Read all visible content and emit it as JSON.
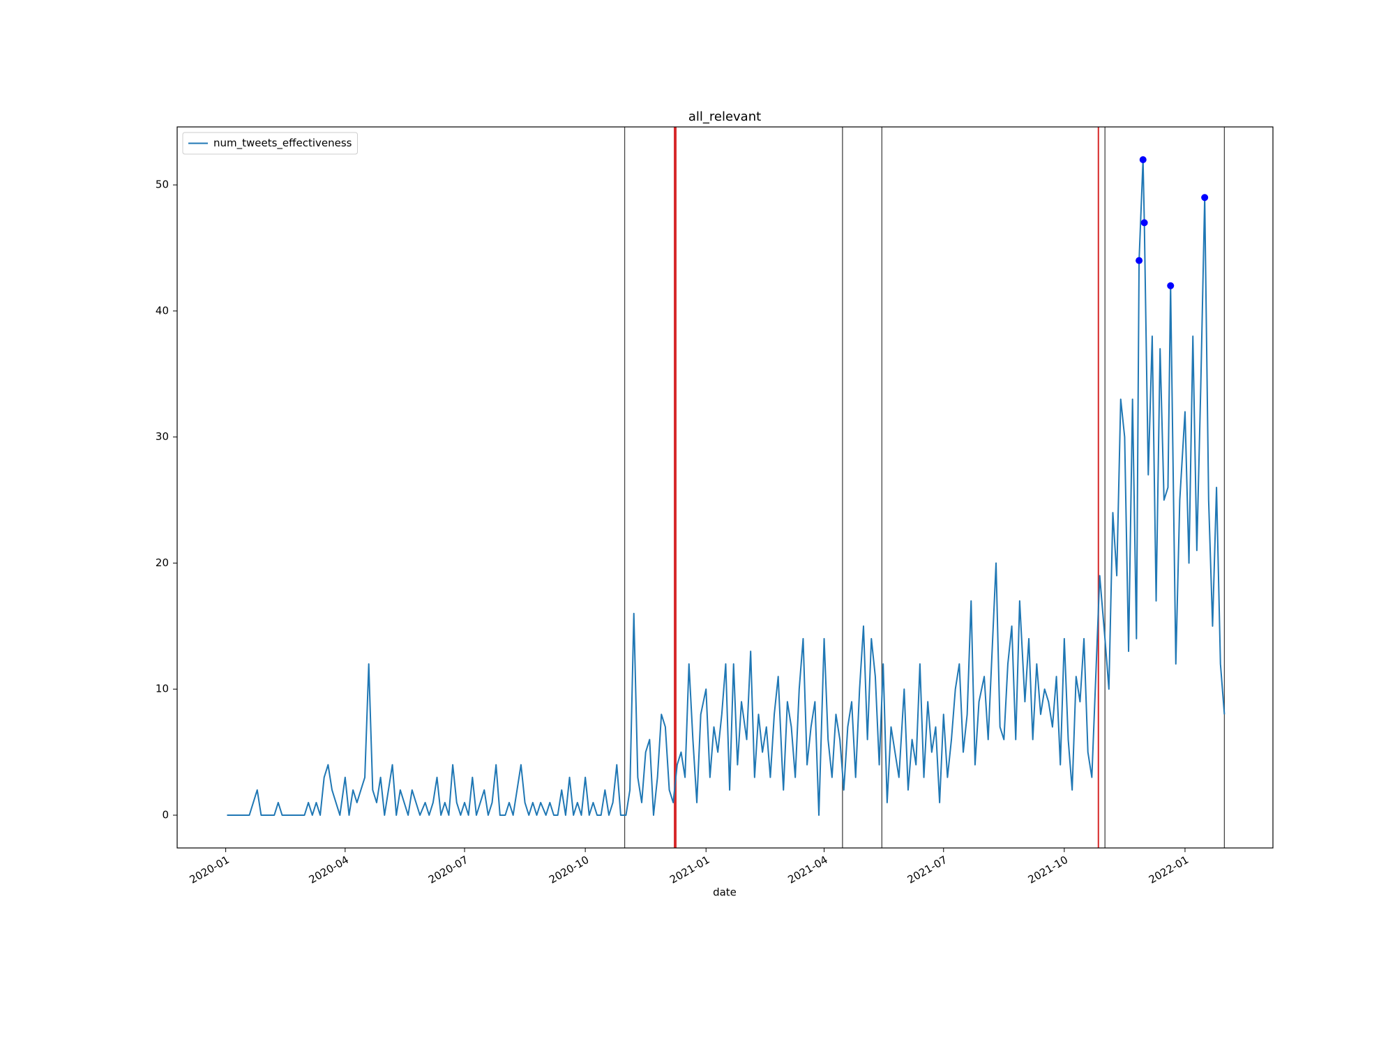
{
  "chart_data": {
    "type": "line",
    "title": "all_relevant",
    "x_label": "date",
    "legend_loc": "upper left",
    "xlim": [
      "2019-11-25",
      "2022-03-09"
    ],
    "ylim": [
      -2.6,
      54.6
    ],
    "yticks": [
      0,
      10,
      20,
      30,
      40,
      50
    ],
    "xticks": [
      {
        "value": "2020-01-01",
        "label": "2020-01"
      },
      {
        "value": "2020-04-01",
        "label": "2020-04"
      },
      {
        "value": "2020-07-01",
        "label": "2020-07"
      },
      {
        "value": "2020-10-01",
        "label": "2020-10"
      },
      {
        "value": "2021-01-01",
        "label": "2021-01"
      },
      {
        "value": "2021-04-01",
        "label": "2021-04"
      },
      {
        "value": "2021-07-01",
        "label": "2021-07"
      },
      {
        "value": "2021-10-01",
        "label": "2021-10"
      },
      {
        "value": "2022-01-01",
        "label": "2022-01"
      }
    ],
    "x": [
      "2020-01-02",
      "2020-01-04",
      "2020-01-07",
      "2020-01-10",
      "2020-01-13",
      "2020-01-16",
      "2020-01-19",
      "2020-01-22",
      "2020-01-25",
      "2020-01-28",
      "2020-02-01",
      "2020-02-04",
      "2020-02-07",
      "2020-02-10",
      "2020-02-13",
      "2020-02-16",
      "2020-02-19",
      "2020-02-22",
      "2020-02-25",
      "2020-02-28",
      "2020-03-01",
      "2020-03-04",
      "2020-03-07",
      "2020-03-10",
      "2020-03-13",
      "2020-03-16",
      "2020-03-19",
      "2020-03-22",
      "2020-03-25",
      "2020-03-28",
      "2020-04-01",
      "2020-04-04",
      "2020-04-07",
      "2020-04-10",
      "2020-04-13",
      "2020-04-16",
      "2020-04-19",
      "2020-04-22",
      "2020-04-25",
      "2020-04-28",
      "2020-05-01",
      "2020-05-04",
      "2020-05-07",
      "2020-05-10",
      "2020-05-13",
      "2020-05-16",
      "2020-05-19",
      "2020-05-22",
      "2020-05-25",
      "2020-05-28",
      "2020-06-01",
      "2020-06-04",
      "2020-06-07",
      "2020-06-10",
      "2020-06-13",
      "2020-06-16",
      "2020-06-19",
      "2020-06-22",
      "2020-06-25",
      "2020-06-28",
      "2020-07-01",
      "2020-07-04",
      "2020-07-07",
      "2020-07-10",
      "2020-07-13",
      "2020-07-16",
      "2020-07-19",
      "2020-07-22",
      "2020-07-25",
      "2020-07-28",
      "2020-08-01",
      "2020-08-04",
      "2020-08-07",
      "2020-08-10",
      "2020-08-13",
      "2020-08-16",
      "2020-08-19",
      "2020-08-22",
      "2020-08-25",
      "2020-08-28",
      "2020-09-01",
      "2020-09-04",
      "2020-09-07",
      "2020-09-10",
      "2020-09-13",
      "2020-09-16",
      "2020-09-19",
      "2020-09-22",
      "2020-09-25",
      "2020-09-28",
      "2020-10-01",
      "2020-10-04",
      "2020-10-07",
      "2020-10-10",
      "2020-10-13",
      "2020-10-16",
      "2020-10-19",
      "2020-10-22",
      "2020-10-25",
      "2020-10-28",
      "2020-11-01",
      "2020-11-04",
      "2020-11-07",
      "2020-11-10",
      "2020-11-13",
      "2020-11-16",
      "2020-11-19",
      "2020-11-22",
      "2020-11-25",
      "2020-11-28",
      "2020-12-01",
      "2020-12-04",
      "2020-12-07",
      "2020-12-10",
      "2020-12-13",
      "2020-12-16",
      "2020-12-19",
      "2020-12-22",
      "2020-12-25",
      "2020-12-28",
      "2021-01-01",
      "2021-01-04",
      "2021-01-07",
      "2021-01-10",
      "2021-01-13",
      "2021-01-16",
      "2021-01-19",
      "2021-01-22",
      "2021-01-25",
      "2021-01-28",
      "2021-02-01",
      "2021-02-04",
      "2021-02-07",
      "2021-02-10",
      "2021-02-13",
      "2021-02-16",
      "2021-02-19",
      "2021-02-22",
      "2021-02-25",
      "2021-02-28",
      "2021-03-01",
      "2021-03-04",
      "2021-03-07",
      "2021-03-10",
      "2021-03-13",
      "2021-03-16",
      "2021-03-19",
      "2021-03-22",
      "2021-03-25",
      "2021-03-28",
      "2021-04-01",
      "2021-04-04",
      "2021-04-07",
      "2021-04-10",
      "2021-04-13",
      "2021-04-16",
      "2021-04-19",
      "2021-04-22",
      "2021-04-25",
      "2021-04-28",
      "2021-05-01",
      "2021-05-04",
      "2021-05-07",
      "2021-05-10",
      "2021-05-13",
      "2021-05-16",
      "2021-05-19",
      "2021-05-22",
      "2021-05-25",
      "2021-05-28",
      "2021-06-01",
      "2021-06-04",
      "2021-06-07",
      "2021-06-10",
      "2021-06-13",
      "2021-06-16",
      "2021-06-19",
      "2021-06-22",
      "2021-06-25",
      "2021-06-28",
      "2021-07-01",
      "2021-07-04",
      "2021-07-07",
      "2021-07-10",
      "2021-07-13",
      "2021-07-16",
      "2021-07-19",
      "2021-07-22",
      "2021-07-25",
      "2021-07-28",
      "2021-08-01",
      "2021-08-04",
      "2021-08-07",
      "2021-08-10",
      "2021-08-13",
      "2021-08-16",
      "2021-08-19",
      "2021-08-22",
      "2021-08-25",
      "2021-08-28",
      "2021-09-01",
      "2021-09-04",
      "2021-09-07",
      "2021-09-10",
      "2021-09-13",
      "2021-09-16",
      "2021-09-19",
      "2021-09-22",
      "2021-09-25",
      "2021-09-28",
      "2021-10-01",
      "2021-10-04",
      "2021-10-07",
      "2021-10-10",
      "2021-10-13",
      "2021-10-16",
      "2021-10-19",
      "2021-10-22",
      "2021-10-25",
      "2021-10-28",
      "2021-11-01",
      "2021-11-04",
      "2021-11-07",
      "2021-11-10",
      "2021-11-13",
      "2021-11-16",
      "2021-11-19",
      "2021-11-22",
      "2021-11-25",
      "2021-11-27",
      "2021-11-30",
      "2021-12-01",
      "2021-12-04",
      "2021-12-07",
      "2021-12-10",
      "2021-12-13",
      "2021-12-16",
      "2021-12-19",
      "2021-12-21",
      "2021-12-25",
      "2021-12-28",
      "2022-01-01",
      "2022-01-04",
      "2022-01-07",
      "2022-01-10",
      "2022-01-13",
      "2022-01-16",
      "2022-01-19",
      "2022-01-22",
      "2022-01-25",
      "2022-01-28",
      "2022-01-31"
    ],
    "series": [
      {
        "name": "num_tweets_effectiveness",
        "color": "#1f77b4",
        "values": [
          0,
          0,
          0,
          0,
          0,
          0,
          0,
          1,
          2,
          0,
          0,
          0,
          0,
          1,
          0,
          0,
          0,
          0,
          0,
          0,
          0,
          1,
          0,
          1,
          0,
          3,
          4,
          2,
          1,
          0,
          3,
          0,
          2,
          1,
          2,
          3,
          12,
          2,
          1,
          3,
          0,
          2,
          4,
          0,
          2,
          1,
          0,
          2,
          1,
          0,
          1,
          0,
          1,
          3,
          0,
          1,
          0,
          4,
          1,
          0,
          1,
          0,
          3,
          0,
          1,
          2,
          0,
          1,
          4,
          0,
          0,
          1,
          0,
          2,
          4,
          1,
          0,
          1,
          0,
          1,
          0,
          1,
          0,
          0,
          2,
          0,
          3,
          0,
          1,
          0,
          3,
          0,
          1,
          0,
          0,
          2,
          0,
          1,
          4,
          0,
          0,
          2,
          16,
          3,
          1,
          5,
          6,
          0,
          3,
          8,
          7,
          2,
          1,
          4,
          5,
          3,
          12,
          6,
          1,
          8,
          10,
          3,
          7,
          5,
          8,
          12,
          2,
          12,
          4,
          9,
          6,
          13,
          3,
          8,
          5,
          7,
          3,
          8,
          11,
          4,
          2,
          9,
          7,
          3,
          10,
          14,
          4,
          7,
          9,
          0,
          14,
          6,
          3,
          8,
          6,
          2,
          7,
          9,
          3,
          10,
          15,
          6,
          14,
          11,
          4,
          12,
          1,
          7,
          5,
          3,
          10,
          2,
          6,
          4,
          12,
          3,
          9,
          5,
          7,
          1,
          8,
          3,
          6,
          10,
          12,
          5,
          8,
          17,
          4,
          9,
          11,
          6,
          13,
          20,
          7,
          6,
          12,
          15,
          6,
          17,
          9,
          14,
          6,
          12,
          8,
          10,
          9,
          7,
          11,
          4,
          14,
          6,
          2,
          11,
          9,
          14,
          5,
          3,
          11,
          19,
          14,
          10,
          24,
          19,
          33,
          30,
          13,
          33,
          14,
          44,
          52,
          47,
          27,
          38,
          17,
          37,
          25,
          26,
          42,
          12,
          25,
          32,
          20,
          38,
          21,
          34,
          49,
          25,
          15,
          26,
          12,
          8
        ]
      }
    ],
    "peaks": {
      "color": "#0000ff",
      "x": [
        "2021-11-27",
        "2021-11-30",
        "2021-12-01",
        "2021-12-21",
        "2022-01-16"
      ],
      "values": [
        44,
        52,
        47,
        42,
        49
      ]
    },
    "vlines": [
      {
        "x": "2020-10-31",
        "color": "#444444"
      },
      {
        "x": "2020-12-08",
        "color": "#d62728"
      },
      {
        "x": "2020-12-09",
        "color": "#d62728"
      },
      {
        "x": "2021-04-15",
        "color": "#444444"
      },
      {
        "x": "2021-05-15",
        "color": "#444444"
      },
      {
        "x": "2021-10-27",
        "color": "#d62728"
      },
      {
        "x": "2021-11-01",
        "color": "#444444"
      },
      {
        "x": "2022-01-31",
        "color": "#444444"
      }
    ]
  }
}
